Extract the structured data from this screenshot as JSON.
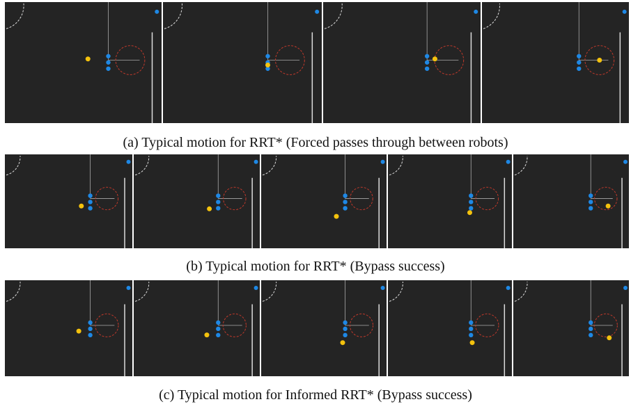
{
  "figure": {
    "captions": [
      "(a) Typical motion for RRT* (Forced passes through between robots)",
      "(b) Typical motion for RRT* (Bypass success)",
      "(c) Typical motion for Informed RRT* (Bypass success)"
    ]
  }
}
